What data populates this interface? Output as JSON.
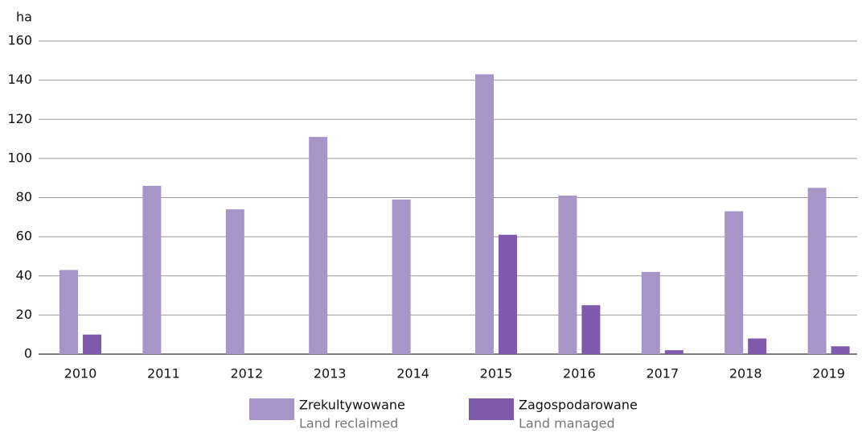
{
  "chart_data": {
    "type": "bar",
    "y_label": "ha",
    "categories": [
      "2010",
      "2011",
      "2012",
      "2013",
      "2014",
      "2015",
      "2016",
      "2017",
      "2018",
      "2019"
    ],
    "series": [
      {
        "name": "Zrekultywowane",
        "name_en": "Land reclaimed",
        "color": "#a695c6",
        "values": [
          43,
          86,
          74,
          111,
          79,
          143,
          81,
          42,
          73,
          85
        ]
      },
      {
        "name": "Zagospodarowane",
        "name_en": "Land managed",
        "color": "#7f5aac",
        "values": [
          10,
          null,
          null,
          null,
          null,
          61,
          25,
          2,
          8,
          4
        ]
      }
    ],
    "ylim": [
      0,
      160
    ],
    "yticks": [
      0,
      20,
      40,
      60,
      80,
      100,
      120,
      140,
      160
    ],
    "grid": true
  }
}
